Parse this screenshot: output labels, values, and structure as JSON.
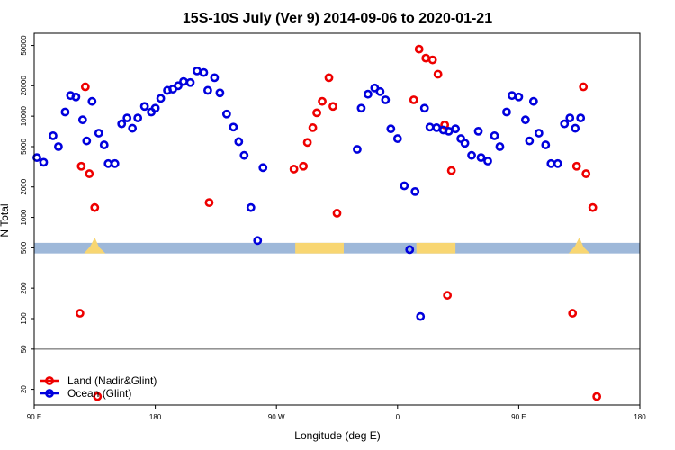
{
  "chart_data": {
    "type": "scatter",
    "title": "15S-10S July (Ver 9)   2014-09-06 to 2020-01-21",
    "xlabel": "Longitude (deg E)",
    "ylabel": "N Total",
    "x_ticks": [
      {
        "value": 90,
        "label": "90 E"
      },
      {
        "value": 180,
        "label": "180"
      },
      {
        "value": 270,
        "label": "90 W"
      },
      {
        "value": 360,
        "label": "0"
      },
      {
        "value": 450,
        "label": "90 E"
      },
      {
        "value": 540,
        "label": "180"
      }
    ],
    "xlim": [
      90,
      540
    ],
    "y_scale": "log",
    "y_ticks": [
      {
        "value": 20,
        "label": "20"
      },
      {
        "value": 50,
        "label": "50"
      },
      {
        "value": 100,
        "label": "100"
      },
      {
        "value": 200,
        "label": "200"
      },
      {
        "value": 500,
        "label": "500"
      },
      {
        "value": 1000,
        "label": "1000"
      },
      {
        "value": 2000,
        "label": "2000"
      },
      {
        "value": 5000,
        "label": "5000"
      },
      {
        "value": 10000,
        "label": "10000"
      },
      {
        "value": 20000,
        "label": "20000"
      },
      {
        "value": 50000,
        "label": "50000"
      }
    ],
    "ylim": [
      14,
      66000
    ],
    "reference_line": 50,
    "land_mask_band": [
      440,
      560
    ],
    "land_mask_colors": {
      "ocean": "#9eb8d9",
      "land": "#f8d672"
    },
    "land_mask_segments": [
      {
        "type": "bump",
        "x_from": 127,
        "x_to": 143
      },
      {
        "type": "land",
        "x_from": 284,
        "x_to": 320
      },
      {
        "type": "land",
        "x_from": 374,
        "x_to": 403
      },
      {
        "type": "bump",
        "x_from": 487,
        "x_to": 503
      }
    ],
    "legend_position": "bottom-left",
    "series": [
      {
        "name": "Land (Nadir&Glint)",
        "color": "#ee0000",
        "points": [
          [
            124,
            113
          ],
          [
            125,
            3200
          ],
          [
            128,
            19500
          ],
          [
            131,
            2700
          ],
          [
            135,
            1250
          ],
          [
            137,
            17
          ],
          [
            220,
            1400
          ],
          [
            283,
            3000
          ],
          [
            290,
            3200
          ],
          [
            293,
            5500
          ],
          [
            297,
            7700
          ],
          [
            300,
            10800
          ],
          [
            304,
            14000
          ],
          [
            309,
            24000
          ],
          [
            312,
            12500
          ],
          [
            315,
            1100
          ],
          [
            372,
            14500
          ],
          [
            376,
            46000
          ],
          [
            381,
            37500
          ],
          [
            386,
            36000
          ],
          [
            390,
            26000
          ],
          [
            395,
            8200
          ],
          [
            397,
            170
          ],
          [
            400,
            2900
          ],
          [
            490,
            113
          ],
          [
            493,
            3200
          ],
          [
            498,
            19500
          ],
          [
            500,
            2700
          ],
          [
            505,
            1250
          ],
          [
            508,
            17
          ]
        ]
      },
      {
        "name": "Ocean (Glint)",
        "color": "#0000dd",
        "points": [
          [
            92,
            3900
          ],
          [
            97,
            3500
          ],
          [
            104,
            6400
          ],
          [
            108,
            5000
          ],
          [
            113,
            11000
          ],
          [
            117,
            16000
          ],
          [
            121,
            15500
          ],
          [
            126,
            9200
          ],
          [
            129,
            5700
          ],
          [
            133,
            14000
          ],
          [
            138,
            6800
          ],
          [
            142,
            5200
          ],
          [
            145,
            3400
          ],
          [
            150,
            3400
          ],
          [
            155,
            8400
          ],
          [
            159,
            9600
          ],
          [
            163,
            7600
          ],
          [
            167,
            9600
          ],
          [
            172,
            12500
          ],
          [
            177,
            11000
          ],
          [
            180,
            12000
          ],
          [
            184,
            15000
          ],
          [
            189,
            18000
          ],
          [
            193,
            18500
          ],
          [
            197,
            20000
          ],
          [
            201,
            22000
          ],
          [
            206,
            21500
          ],
          [
            211,
            28000
          ],
          [
            216,
            27000
          ],
          [
            219,
            18000
          ],
          [
            224,
            24000
          ],
          [
            228,
            17000
          ],
          [
            233,
            10500
          ],
          [
            238,
            7800
          ],
          [
            242,
            5600
          ],
          [
            246,
            4100
          ],
          [
            251,
            1250
          ],
          [
            256,
            590
          ],
          [
            260,
            3100
          ],
          [
            330,
            4700
          ],
          [
            333,
            12000
          ],
          [
            338,
            16500
          ],
          [
            343,
            19000
          ],
          [
            347,
            17500
          ],
          [
            351,
            14500
          ],
          [
            355,
            7500
          ],
          [
            360,
            6000
          ],
          [
            365,
            2050
          ],
          [
            369,
            480
          ],
          [
            373,
            1800
          ],
          [
            377,
            105
          ],
          [
            380,
            12000
          ],
          [
            384,
            7800
          ],
          [
            389,
            7700
          ],
          [
            394,
            7300
          ],
          [
            398,
            7100
          ],
          [
            403,
            7500
          ],
          [
            407,
            6000
          ],
          [
            410,
            5400
          ],
          [
            415,
            4100
          ],
          [
            420,
            7100
          ],
          [
            422,
            3900
          ],
          [
            427,
            3600
          ],
          [
            432,
            6400
          ],
          [
            436,
            5000
          ],
          [
            441,
            11000
          ],
          [
            445,
            16000
          ],
          [
            450,
            15500
          ],
          [
            455,
            9200
          ],
          [
            458,
            5700
          ],
          [
            461,
            14000
          ],
          [
            465,
            6800
          ],
          [
            470,
            5200
          ],
          [
            474,
            3400
          ],
          [
            479,
            3400
          ],
          [
            484,
            8400
          ],
          [
            488,
            9600
          ],
          [
            492,
            7600
          ],
          [
            496,
            9600
          ]
        ]
      }
    ]
  }
}
